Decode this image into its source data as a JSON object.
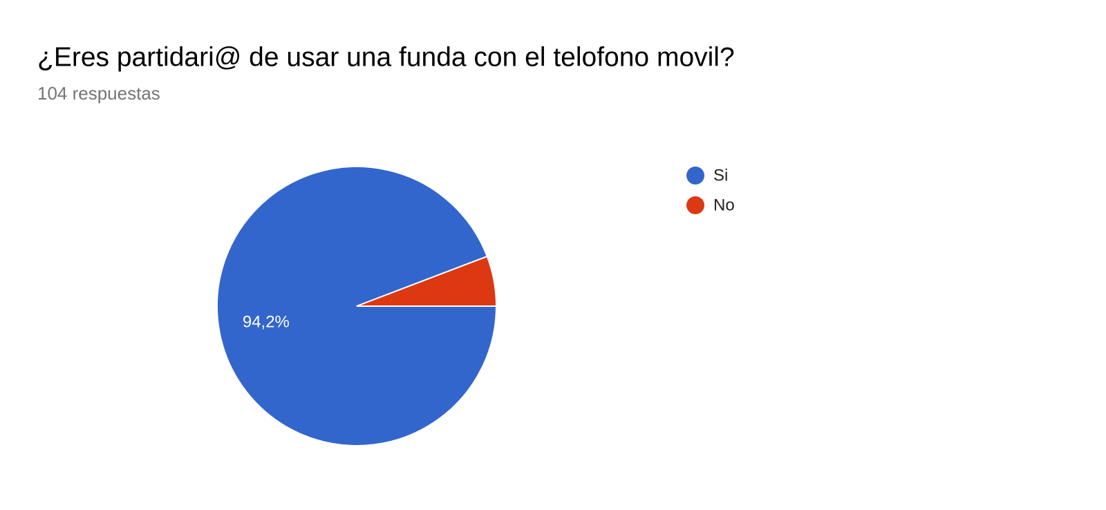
{
  "chart_data": {
    "type": "pie",
    "title": "¿Eres partidari@ de usar una funda con el telofono movil?",
    "subtitle": "104 respuestas",
    "categories": [
      "Si",
      "No"
    ],
    "values": [
      94.2,
      5.8
    ],
    "value_labels": [
      "94,2%",
      null
    ],
    "colors": [
      "#3366cc",
      "#dc3912"
    ],
    "legend": "right"
  }
}
